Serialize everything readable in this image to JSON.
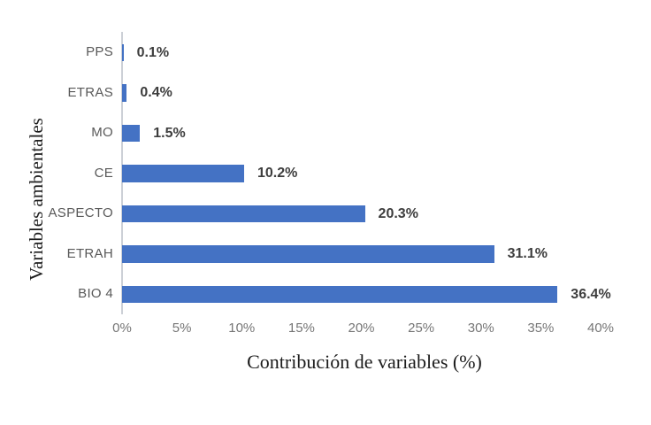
{
  "chart_data": {
    "type": "bar",
    "orientation": "horizontal",
    "title": "",
    "xlabel": "Contribución de variables (%)",
    "ylabel": "Variables ambientales",
    "categories": [
      "PPS",
      "ETRAS",
      "MO",
      "CE",
      "ASPECTO",
      "ETRAH",
      "BIO 4"
    ],
    "values": [
      0.1,
      0.4,
      1.5,
      10.2,
      20.3,
      31.1,
      36.4
    ],
    "value_labels": [
      "0.1%",
      "0.4%",
      "1.5%",
      "10.2%",
      "20.3%",
      "31.1%",
      "36.4%"
    ],
    "xlim": [
      0,
      40
    ],
    "xtick_values": [
      0,
      5,
      10,
      15,
      20,
      25,
      30,
      35,
      40
    ],
    "xtick_labels": [
      "0%",
      "5%",
      "10%",
      "15%",
      "20%",
      "25%",
      "30%",
      "35%",
      "40%"
    ],
    "grid": false,
    "legend": null,
    "bar_color": "#4472c4",
    "axis_line_color": "#ccd0d6",
    "category_label_color": "#595959",
    "tick_label_color": "#767676",
    "value_label_color": "#3d3d3d"
  }
}
